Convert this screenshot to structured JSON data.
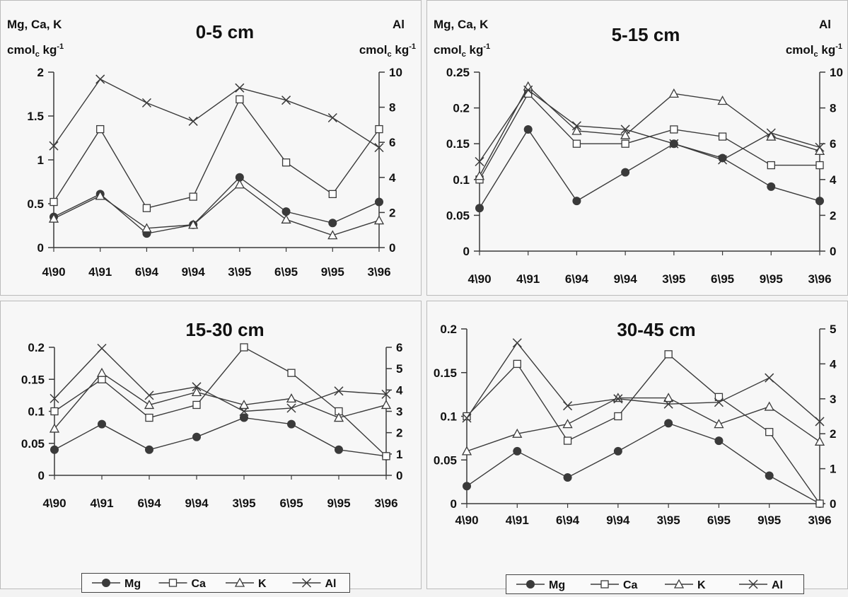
{
  "chart_data": [
    {
      "type": "line",
      "title": "0-5 cm",
      "left_axis_label": {
        "prefix": "Mg, Ca, K",
        "unit": "cmol",
        "sub": "c",
        "rest": " kg",
        "sup": "-1"
      },
      "right_axis_label": {
        "prefix": "Al",
        "unit": "cmol",
        "sub": "c",
        "rest": " kg",
        "sup": "-1"
      },
      "categories": [
        "4\\90",
        "4\\91",
        "6\\94",
        "9\\94",
        "3\\95",
        "6\\95",
        "9\\95",
        "3\\96"
      ],
      "ylim": [
        0,
        2
      ],
      "yticks": [
        "0",
        "0.5",
        "1",
        "1.5",
        "2"
      ],
      "ytick_values": [
        0,
        0.5,
        1,
        1.5,
        2
      ],
      "y2lim": [
        0,
        10
      ],
      "y2ticks": [
        "0",
        "2",
        "4",
        "6",
        "8",
        "10"
      ],
      "y2tick_values": [
        0,
        2,
        4,
        6,
        8,
        10
      ],
      "grid": false,
      "series": [
        {
          "name": "Mg",
          "marker": "circle",
          "axis": "left",
          "values": [
            0.35,
            0.61,
            0.16,
            0.26,
            0.8,
            0.41,
            0.28,
            0.52
          ]
        },
        {
          "name": "Ca",
          "marker": "square",
          "axis": "left",
          "values": [
            0.52,
            1.35,
            0.45,
            0.58,
            1.69,
            0.97,
            0.61,
            1.35
          ]
        },
        {
          "name": "K",
          "marker": "triangle",
          "axis": "left",
          "values": [
            0.33,
            0.59,
            0.22,
            0.26,
            0.72,
            0.32,
            0.14,
            0.31
          ]
        },
        {
          "name": "Al",
          "marker": "x",
          "axis": "right",
          "values": [
            5.8,
            9.6,
            8.25,
            7.2,
            9.1,
            8.4,
            7.4,
            5.7
          ]
        }
      ]
    },
    {
      "type": "line",
      "title": "5-15 cm",
      "left_axis_label": {
        "prefix": "Mg, Ca, K",
        "unit": "cmol",
        "sub": "c",
        "rest": " kg",
        "sup": "-1"
      },
      "right_axis_label": {
        "prefix": "Al",
        "unit": "cmol",
        "sub": "c",
        "rest": " kg",
        "sup": "-1"
      },
      "categories": [
        "4\\90",
        "4\\91",
        "6\\94",
        "9\\94",
        "3\\95",
        "6\\95",
        "9\\95",
        "3\\96"
      ],
      "ylim": [
        0,
        0.25
      ],
      "yticks": [
        "0",
        "0.05",
        "0.1",
        "0.15",
        "0.2",
        "0.25"
      ],
      "ytick_values": [
        0,
        0.05,
        0.1,
        0.15,
        0.2,
        0.25
      ],
      "y2lim": [
        0,
        10
      ],
      "y2ticks": [
        "0",
        "2",
        "4",
        "6",
        "8",
        "10"
      ],
      "y2tick_values": [
        0,
        2,
        4,
        6,
        8,
        10
      ],
      "grid": false,
      "series": [
        {
          "name": "Mg",
          "marker": "circle",
          "axis": "left",
          "values": [
            0.06,
            0.17,
            0.07,
            0.11,
            0.15,
            0.13,
            0.09,
            0.07
          ]
        },
        {
          "name": "Ca",
          "marker": "square",
          "axis": "left",
          "values": [
            0.1,
            0.22,
            0.15,
            0.15,
            0.17,
            0.16,
            0.12,
            0.12
          ]
        },
        {
          "name": "K",
          "marker": "triangle",
          "axis": "left",
          "values": [
            0.105,
            0.23,
            0.168,
            0.162,
            0.22,
            0.21,
            0.16,
            0.14
          ]
        },
        {
          "name": "Al",
          "marker": "x",
          "axis": "right",
          "values": [
            5.0,
            9.0,
            7.0,
            6.8,
            6.0,
            5.1,
            6.6,
            5.8
          ]
        }
      ]
    },
    {
      "type": "line",
      "title": "15-30 cm",
      "categories": [
        "4\\90",
        "4\\91",
        "6\\94",
        "9\\94",
        "3\\95",
        "6\\95",
        "9\\95",
        "3\\96"
      ],
      "ylim": [
        0,
        0.2
      ],
      "yticks": [
        "0",
        "0.05",
        "0.1",
        "0.15",
        "0.2"
      ],
      "ytick_values": [
        0,
        0.05,
        0.1,
        0.15,
        0.2
      ],
      "y2lim": [
        0,
        6
      ],
      "y2ticks": [
        "0",
        "1",
        "2",
        "3",
        "4",
        "5",
        "6"
      ],
      "y2tick_values": [
        0,
        1,
        2,
        3,
        4,
        5,
        6
      ],
      "grid": false,
      "series": [
        {
          "name": "Mg",
          "marker": "circle",
          "axis": "left",
          "values": [
            0.04,
            0.08,
            0.04,
            0.06,
            0.09,
            0.08,
            0.04,
            0.03
          ]
        },
        {
          "name": "Ca",
          "marker": "square",
          "axis": "left",
          "values": [
            0.1,
            0.15,
            0.09,
            0.11,
            0.2,
            0.16,
            0.1,
            0.03
          ]
        },
        {
          "name": "K",
          "marker": "triangle",
          "axis": "left",
          "values": [
            0.073,
            0.16,
            0.11,
            0.13,
            0.11,
            0.12,
            0.09,
            0.11
          ]
        },
        {
          "name": "Al",
          "marker": "x",
          "axis": "right",
          "values": [
            3.6,
            5.95,
            3.75,
            4.15,
            3.0,
            3.15,
            3.95,
            3.8
          ]
        }
      ],
      "legend": {
        "position": "bottom",
        "entries": [
          "Mg",
          "Ca",
          "K",
          "Al"
        ]
      }
    },
    {
      "type": "line",
      "title": "30-45 cm",
      "categories": [
        "4\\90",
        "4\\91",
        "6\\94",
        "9\\94",
        "3\\95",
        "6\\95",
        "9\\95",
        "3\\96"
      ],
      "ylim": [
        0,
        0.2
      ],
      "yticks": [
        "0",
        "0.05",
        "0.1",
        "0.15",
        "0.2"
      ],
      "ytick_values": [
        0,
        0.05,
        0.1,
        0.15,
        0.2
      ],
      "y2lim": [
        0,
        5
      ],
      "y2ticks": [
        "0",
        "1",
        "2",
        "3",
        "4",
        "5"
      ],
      "y2tick_values": [
        0,
        1,
        2,
        3,
        4,
        5
      ],
      "grid": false,
      "series": [
        {
          "name": "Mg",
          "marker": "circle",
          "axis": "left",
          "values": [
            0.02,
            0.06,
            0.03,
            0.06,
            0.092,
            0.072,
            0.032,
            0.0
          ]
        },
        {
          "name": "Ca",
          "marker": "square",
          "axis": "left",
          "values": [
            0.1,
            0.16,
            0.072,
            0.1,
            0.171,
            0.122,
            0.082,
            0.0
          ]
        },
        {
          "name": "K",
          "marker": "triangle",
          "axis": "left",
          "values": [
            0.06,
            0.08,
            0.091,
            0.121,
            0.121,
            0.091,
            0.111,
            0.071
          ]
        },
        {
          "name": "Al",
          "marker": "x",
          "axis": "right",
          "values": [
            2.45,
            4.6,
            2.8,
            3.0,
            2.85,
            2.9,
            3.6,
            2.35
          ]
        }
      ],
      "legend": {
        "position": "bottom",
        "entries": [
          "Mg",
          "Ca",
          "K",
          "Al"
        ]
      }
    }
  ],
  "colors": {
    "line": "#3a3a3a",
    "marker_fill_solid": "#3a3a3a",
    "marker_fill_open": "#ffffff",
    "panel_bg": "#f7f7f7",
    "panel_border": "#bbbbbb"
  }
}
